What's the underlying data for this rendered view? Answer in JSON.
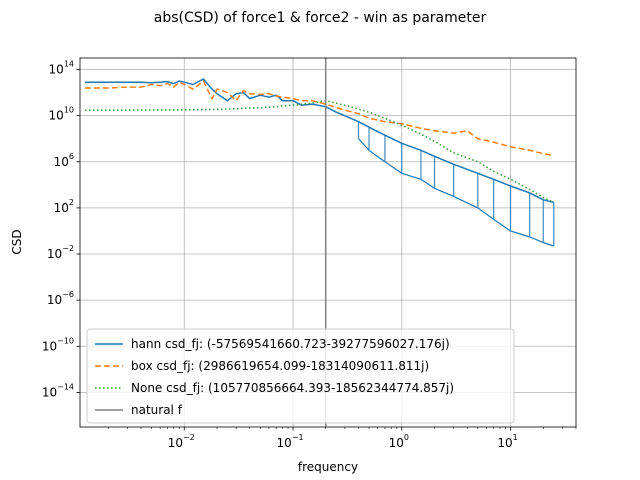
{
  "chart_data": {
    "type": "line",
    "title": "abs(CSD) of force1 & force2 - win as parameter",
    "xlabel": "frequency",
    "ylabel": "CSD",
    "xscale": "log",
    "yscale": "log",
    "xlim": [
      0.0011,
      40
    ],
    "ylim": [
      1e-17,
      1000000000000000.0
    ],
    "grid": true,
    "legend_position": "lower-left",
    "x_ticks": [
      {
        "value": 0.01,
        "base": "10",
        "exp": "−2"
      },
      {
        "value": 0.1,
        "base": "10",
        "exp": "−1"
      },
      {
        "value": 1,
        "base": "10",
        "exp": "0"
      },
      {
        "value": 10,
        "base": "10",
        "exp": "1"
      }
    ],
    "y_ticks": [
      {
        "value": 1e-14,
        "base": "10",
        "exp": "−14"
      },
      {
        "value": 1e-10,
        "base": "10",
        "exp": "−10"
      },
      {
        "value": 1e-06,
        "base": "10",
        "exp": "−6"
      },
      {
        "value": 0.01,
        "base": "10",
        "exp": "−2"
      },
      {
        "value": 100,
        "base": "10",
        "exp": "2"
      },
      {
        "value": 1000000.0,
        "base": "10",
        "exp": "6"
      },
      {
        "value": 10000000000.0,
        "base": "10",
        "exp": "10"
      },
      {
        "value": 100000000000000.0,
        "base": "10",
        "exp": "14"
      }
    ],
    "series": [
      {
        "name": "hann csd_fj: (-57569541660.723-39277596027.176j)",
        "color": "#1f77b4",
        "dash": "solid",
        "x": [
          0.00122,
          0.002,
          0.003,
          0.004,
          0.005,
          0.006,
          0.007,
          0.008,
          0.009,
          0.01,
          0.012,
          0.015,
          0.018,
          0.02,
          0.025,
          0.03,
          0.035,
          0.04,
          0.05,
          0.06,
          0.07,
          0.08,
          0.1,
          0.12,
          0.15,
          0.2,
          0.25,
          0.3,
          0.4,
          0.5,
          0.7,
          1,
          1.5,
          2,
          3,
          5,
          7,
          10,
          15,
          20,
          25
        ],
        "y": [
          8000000000000.0,
          8000000000000.0,
          8000000000000.0,
          8000000000000.0,
          7000000000000.0,
          8000000000000.0,
          9000000000000.0,
          6000000000000.0,
          10000000000000.0,
          8000000000000.0,
          5000000000000.0,
          15000000000000.0,
          2000000000000.0,
          800000000000.0,
          200000000000.0,
          800000000000.0,
          1000000000000.0,
          300000000000.0,
          600000000000.0,
          400000000000.0,
          600000000000.0,
          200000000000.0,
          200000000000.0,
          80000000000.0,
          100000000000.0,
          60000000000.0,
          20000000000.0,
          10000000000.0,
          3000000000.0,
          1000000000.0,
          200000000.0,
          40000000.0,
          10000000.0,
          3000000.0,
          600000.0,
          100000.0,
          30000.0,
          8000.0,
          2000.0,
          500.0,
          300.0
        ],
        "y_low": [
          null,
          null,
          null,
          null,
          null,
          null,
          null,
          null,
          null,
          null,
          null,
          null,
          null,
          null,
          null,
          null,
          null,
          null,
          null,
          null,
          null,
          null,
          null,
          null,
          null,
          null,
          null,
          null,
          100000000.0,
          10000000.0,
          1000000.0,
          100000.0,
          30000.0,
          5000.0,
          1000.0,
          100,
          10,
          1,
          0.3,
          0.1,
          0.05
        ]
      },
      {
        "name": "box csd_fj: (2986619654.099-18314090611.811j)",
        "color": "#ff7f0e",
        "dash": "dashed",
        "x": [
          0.00122,
          0.002,
          0.003,
          0.004,
          0.005,
          0.006,
          0.007,
          0.008,
          0.009,
          0.01,
          0.012,
          0.015,
          0.018,
          0.02,
          0.025,
          0.03,
          0.035,
          0.04,
          0.05,
          0.06,
          0.07,
          0.08,
          0.1,
          0.12,
          0.15,
          0.2,
          0.25,
          0.3,
          0.4,
          0.5,
          0.7,
          1,
          1.5,
          2,
          3,
          4,
          5,
          7,
          10,
          15,
          20,
          25
        ],
        "y": [
          2500000000000.0,
          2500000000000.0,
          3000000000000.0,
          3000000000000.0,
          5000000000000.0,
          4000000000000.0,
          6000000000000.0,
          3000000000000.0,
          8000000000000.0,
          5000000000000.0,
          2000000000000.0,
          10000000000000.0,
          300000000000.0,
          2000000000000.0,
          1000000000000.0,
          200000000000.0,
          1500000000000.0,
          800000000000.0,
          700000000000.0,
          800000000000.0,
          500000000000.0,
          400000000000.0,
          300000000000.0,
          200000000000.0,
          200000000000.0,
          100000000000.0,
          50000000000.0,
          30000000000.0,
          15000000000.0,
          6000000000.0,
          3000000000.0,
          2000000000.0,
          800000000.0,
          500000000.0,
          300000000.0,
          500000000.0,
          100000000.0,
          50000000.0,
          20000000.0,
          10000000.0,
          5000000.0,
          3500000.0
        ]
      },
      {
        "name": "None csd_fj: (105770856664.393-18562344774.857j)",
        "color": "#2ca02c",
        "dash": "dotted",
        "x": [
          0.00122,
          0.003,
          0.01,
          0.02,
          0.03,
          0.04,
          0.05,
          0.06,
          0.07,
          0.08,
          0.1,
          0.12,
          0.15,
          0.2,
          0.3,
          0.5,
          0.7,
          1,
          1.5,
          2,
          3,
          5,
          7,
          10,
          15,
          20,
          25
        ],
        "y": [
          30000000000.0,
          30000000000.0,
          32000000000.0,
          35000000000.0,
          40000000000.0,
          45000000000.0,
          50000000000.0,
          55000000000.0,
          60000000000.0,
          70000000000.0,
          80000000000.0,
          100000000000.0,
          120000000000.0,
          200000000000.0,
          80000000000.0,
          20000000000.0,
          6000000000.0,
          1500000000.0,
          250000000.0,
          60000000.0,
          6000000.0,
          1000000.0,
          150000.0,
          30000.0,
          4000.0,
          800,
          300
        ]
      },
      {
        "name": "natural f",
        "color": "#808080",
        "dash": "solid",
        "x": [
          0.2,
          0.2
        ],
        "y": [
          1e-17,
          1000000000000000.0
        ]
      }
    ]
  }
}
